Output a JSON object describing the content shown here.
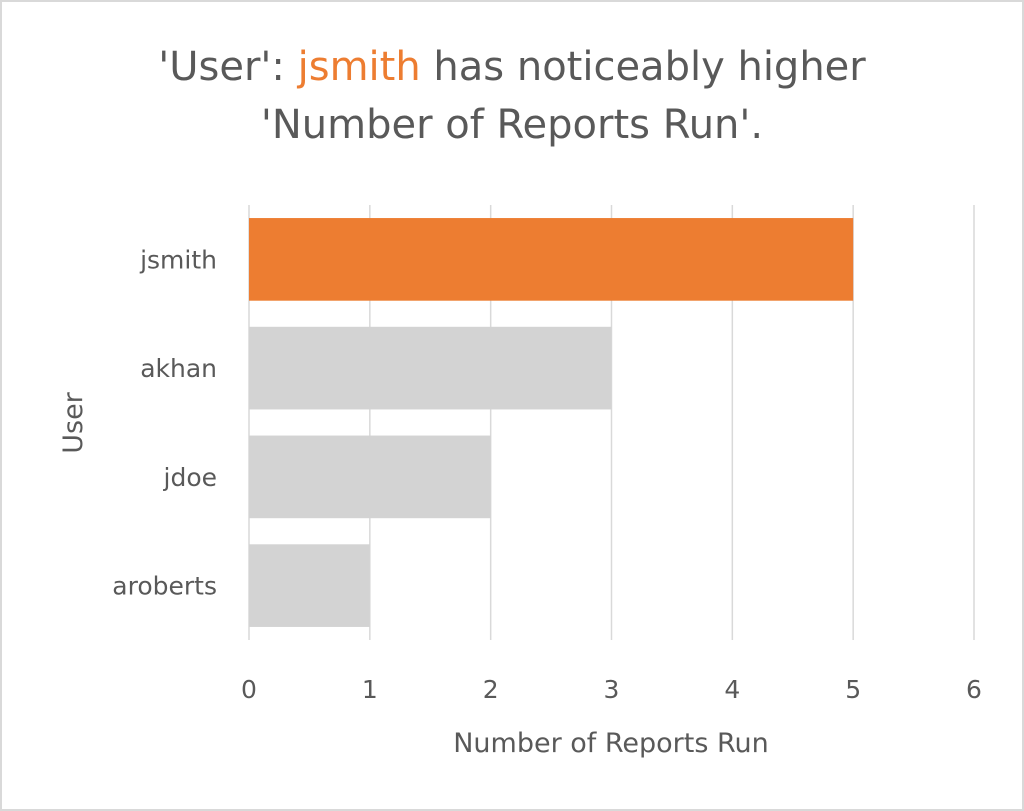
{
  "chart_data": {
    "type": "bar",
    "orientation": "horizontal",
    "title": {
      "part1": "'User': ",
      "highlight": "jsmith",
      "part2": " has noticeably higher",
      "line2": "'Number of Reports Run'."
    },
    "xlabel": "Number of Reports Run",
    "ylabel": "User",
    "categories": [
      "jsmith",
      "akhan",
      "jdoe",
      "aroberts"
    ],
    "values": [
      5,
      3,
      2,
      1
    ],
    "xlim": [
      0,
      6
    ],
    "xticks": [
      "0",
      "1",
      "2",
      "3",
      "4",
      "5",
      "6"
    ],
    "grid": "vertical",
    "colors": {
      "highlight": "#ed7d31",
      "default": "#d3d3d3",
      "grid": "#d9d9d9",
      "text": "#595959"
    },
    "highlight_category": "jsmith"
  }
}
